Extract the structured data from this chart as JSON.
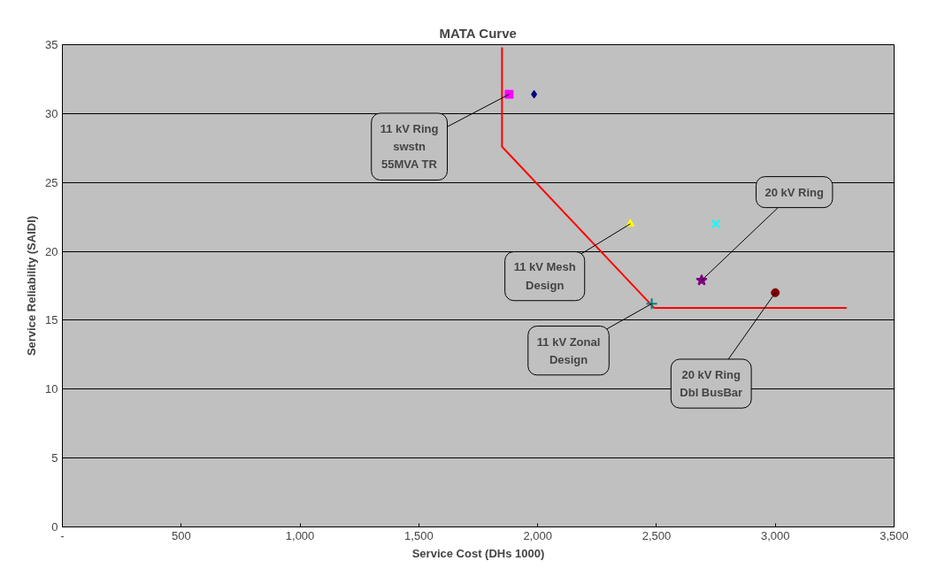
{
  "chart_data": {
    "type": "scatter",
    "title": "MATA Curve",
    "xlabel": "Service Cost (DHs 1000)",
    "ylabel": "Service Reliability (SAIDI)",
    "xlim": [
      0,
      3500
    ],
    "xticks": [
      {
        "value": 0,
        "label": "-"
      },
      500,
      {
        "value": 1000,
        "label": "1,000"
      },
      {
        "value": 1500,
        "label": "1,500"
      },
      {
        "value": 2000,
        "label": "2,000"
      },
      {
        "value": 2500,
        "label": "2,500"
      },
      {
        "value": 3000,
        "label": "3,000"
      },
      {
        "value": 3500,
        "label": "3,500"
      }
    ],
    "ylim": [
      0,
      35
    ],
    "yticks": [
      0,
      5,
      10,
      15,
      20,
      25,
      30,
      35
    ],
    "grid": "y",
    "series": [
      {
        "type": "line",
        "color": "#ff0000",
        "x": [
          1850,
          1850,
          2490,
          3300
        ],
        "values": [
          34.8,
          27.6,
          15.9,
          15.9
        ],
        "marker": "none",
        "line_style": "solid"
      },
      {
        "color": "#ff00ff",
        "x": [
          1880
        ],
        "values": [
          31.4
        ],
        "marker": "square"
      },
      {
        "color": "#000080",
        "x": [
          1985
        ],
        "values": [
          31.4
        ],
        "marker": "diamond"
      },
      {
        "color": "#ffff00",
        "x": [
          2390
        ],
        "values": [
          22
        ],
        "marker": "triangle"
      },
      {
        "color": "#00ffff",
        "x": [
          2750
        ],
        "values": [
          22
        ],
        "marker": "x"
      },
      {
        "color": "#800080",
        "x": [
          2690
        ],
        "values": [
          17.9
        ],
        "marker": "star"
      },
      {
        "color": "#008080",
        "x": [
          2480
        ],
        "values": [
          16.2
        ],
        "marker": "cross"
      },
      {
        "color": "#800000",
        "x": [
          3000
        ],
        "values": [
          17
        ],
        "marker": "circle"
      }
    ],
    "annotations": [
      {
        "text": "11 kV Ring\nswstn\n55MVA TR",
        "x": 1880,
        "y": 31.4
      },
      {
        "text": "11 kV Mesh\nDesign",
        "x": 2390,
        "y": 22
      },
      {
        "text": "20 kV Ring",
        "x": 2690,
        "y": 17.9
      },
      {
        "text": "11 kV Zonal\nDesign",
        "x": 2480,
        "y": 16.2
      },
      {
        "text": "20 kV Ring\nDbl BusBar",
        "x": 3000,
        "y": 17
      }
    ]
  }
}
